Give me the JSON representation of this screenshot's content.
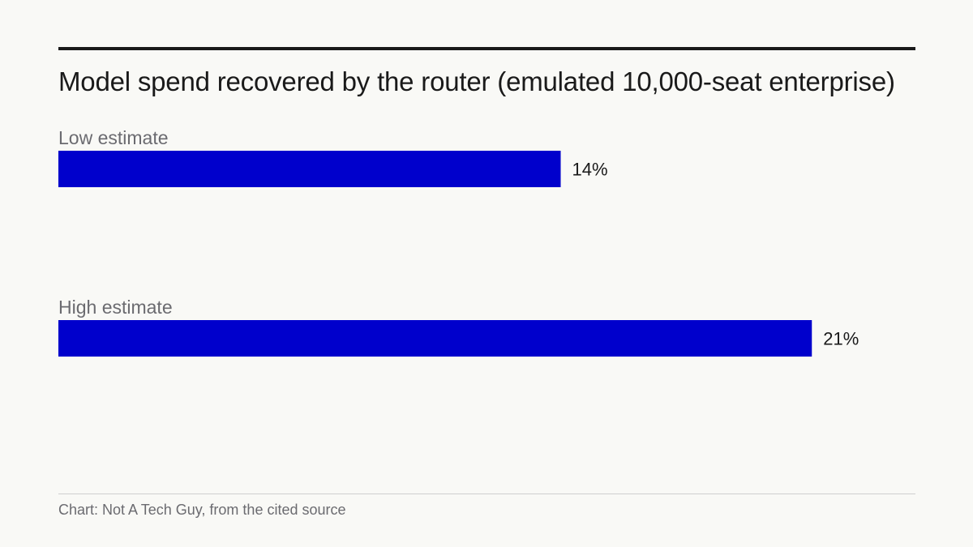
{
  "title": "Model spend recovered by the router (emulated 10,000-seat enterprise)",
  "source": "Chart: Not A Tech Guy, from the cited source",
  "colors": {
    "bar": "#0000cc",
    "rule": "#1a1a1a",
    "muted_text": "#6b6b70"
  },
  "chart_data": {
    "type": "bar",
    "orientation": "horizontal",
    "title": "Model spend recovered by the router (emulated 10,000-seat enterprise)",
    "categories": [
      "Low estimate",
      "High estimate"
    ],
    "values": [
      14,
      21
    ],
    "value_labels": [
      "14%",
      "21%"
    ],
    "unit": "%",
    "xlim": [
      0,
      24
    ],
    "grid": false,
    "legend": "none"
  }
}
